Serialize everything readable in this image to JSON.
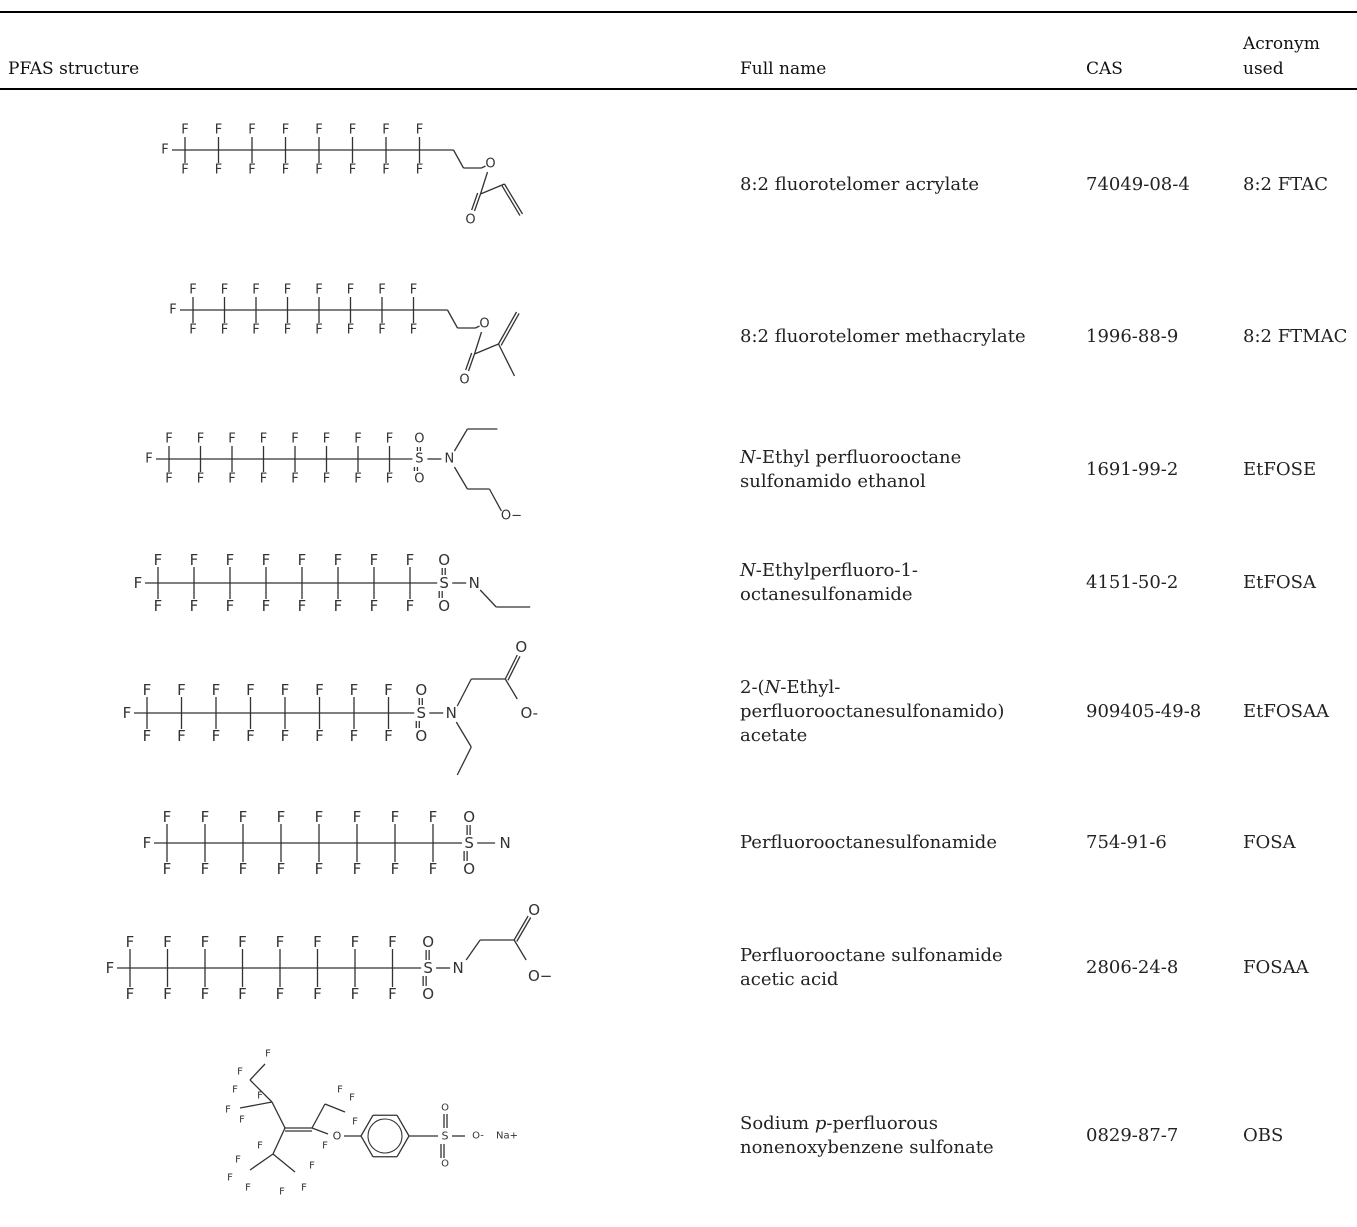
{
  "headers": {
    "structure": "PFAS structure",
    "full_name": "Full name",
    "cas": "CAS",
    "acronym_line1": "Acronym",
    "acronym_line2": "used"
  },
  "rows": [
    {
      "structure": "fluorotelomer-acrylate-structure",
      "name_lines": [
        [
          "",
          "8:2 fluorotelomer acrylate"
        ]
      ],
      "cas": "74049-08-4",
      "acronym": "8:2 FTAC"
    },
    {
      "structure": "fluorotelomer-methacrylate-structure",
      "name_lines": [
        [
          "",
          "8:2 fluorotelomer methacrylate"
        ]
      ],
      "cas": "1996-88-9",
      "acronym": "8:2 FTMAC"
    },
    {
      "structure": "etfose-structure",
      "name_lines": [
        [
          "N",
          "-Ethyl perfluorooctane"
        ],
        [
          "",
          "sulfonamido ethanol"
        ]
      ],
      "cas": "1691-99-2",
      "acronym": "EtFOSE"
    },
    {
      "structure": "etfosa-structure",
      "name_lines": [
        [
          "N",
          "-Ethylperfluoro-1-"
        ],
        [
          "",
          "octanesulfonamide"
        ]
      ],
      "cas": "4151-50-2",
      "acronym": "EtFOSA"
    },
    {
      "structure": "etfosaa-structure",
      "name_lines": [
        [
          "",
          "2-(",
          "N",
          "-Ethyl-"
        ],
        [
          "",
          "perfluorooctanesulfonamido)"
        ],
        [
          "",
          "acetate"
        ]
      ],
      "cas": "909405-49-8",
      "acronym": "EtFOSAA"
    },
    {
      "structure": "fosa-structure",
      "name_lines": [
        [
          "",
          "Perfluorooctanesulfonamide"
        ]
      ],
      "cas": "754-91-6",
      "acronym": "FOSA"
    },
    {
      "structure": "fosaa-structure",
      "name_lines": [
        [
          "",
          "Perfluorooctane sulfonamide"
        ],
        [
          "",
          "acetic acid"
        ]
      ],
      "cas": "2806-24-8",
      "acronym": "FOSAA"
    },
    {
      "structure": "obs-structure",
      "name_lines": [
        [
          "",
          "Sodium ",
          "p",
          "-perfluorous"
        ],
        [
          "",
          "nonenoxybenzene sulfonate"
        ]
      ],
      "cas": "0829-87-7",
      "acronym": "OBS"
    }
  ],
  "atom_labels": {
    "F": "F",
    "O": "O",
    "S": "S",
    "N": "N",
    "O_minus": "O−",
    "O_dash": "O-",
    "Na_plus": "Na+"
  }
}
